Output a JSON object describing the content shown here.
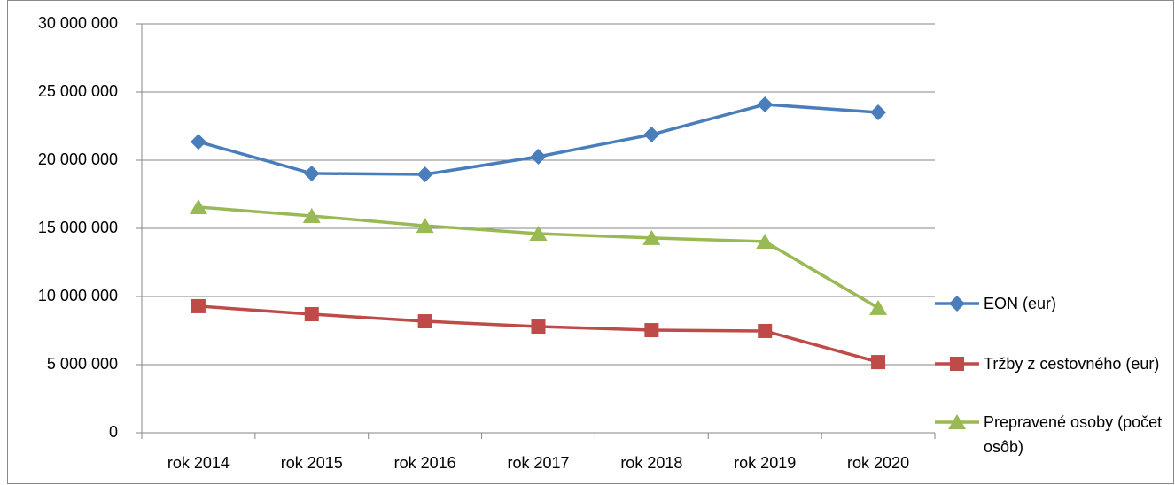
{
  "chart_data": {
    "type": "line",
    "categories": [
      "rok 2014",
      "rok 2015",
      "rok 2016",
      "rok 2017",
      "rok 2018",
      "rok 2019",
      "rok 2020"
    ],
    "series": [
      {
        "name": "EON (eur)",
        "color": "#4a7ebb",
        "marker": "diamond",
        "values": [
          21350000,
          19030000,
          18960000,
          20260000,
          21880000,
          24090000,
          23510000
        ]
      },
      {
        "name": "Tržby z cestovného (eur)",
        "color": "#be4b48",
        "marker": "square",
        "values": [
          9290000,
          8700000,
          8180000,
          7790000,
          7530000,
          7470000,
          5190000
        ]
      },
      {
        "name": "Prepravené osoby (počet osôb)",
        "color": "#98b954",
        "marker": "triangle",
        "values": [
          16560000,
          15910000,
          15190000,
          14610000,
          14290000,
          14030000,
          9160000
        ]
      }
    ],
    "ylim": [
      0,
      30000000
    ],
    "yticks": [
      0,
      {
        "value": 5000000,
        "label": "5 000 000"
      },
      {
        "value": 10000000,
        "label": "10 000 000"
      },
      {
        "value": 15000000,
        "label": "15 000 000"
      },
      {
        "value": 20000000,
        "label": "20 000 000"
      },
      {
        "value": 25000000,
        "label": "25 000 000"
      },
      {
        "value": 30000000,
        "label": "30 000 000"
      }
    ],
    "grid": true,
    "legend": "right"
  }
}
